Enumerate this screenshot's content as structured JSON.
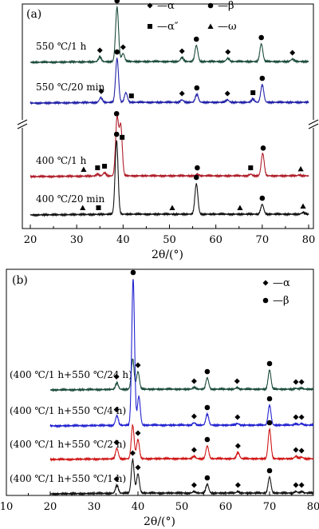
{
  "figure": {
    "legend_symbols": {
      "alpha": "◆",
      "beta": "●",
      "alpha_dp": "■",
      "omega": "▲"
    }
  },
  "chart_data": [
    {
      "type": "line",
      "panel_label": "(a)",
      "xlabel": "2θ/(°)",
      "xlim": [
        20,
        80
      ],
      "x_ticks": [
        20,
        30,
        40,
        50,
        60,
        70,
        80
      ],
      "y_axis_break": true,
      "legend": [
        {
          "marker": "diamond",
          "text": "—α"
        },
        {
          "marker": "circle",
          "text": "—β"
        },
        {
          "marker": "square",
          "text": "—α″"
        },
        {
          "marker": "triangle",
          "text": "—ω"
        }
      ],
      "series": [
        {
          "name": "550 ℃/1 h",
          "color": "#1d4d3c",
          "base": 77,
          "peaks": [
            [
              35,
              6
            ],
            [
              38.7,
              68
            ],
            [
              40,
              10
            ],
            [
              52.7,
              5
            ],
            [
              55.8,
              20
            ],
            [
              62.6,
              4
            ],
            [
              69.8,
              22
            ],
            [
              76.5,
              3
            ]
          ],
          "markers": [
            [
              35,
              "diamond"
            ],
            [
              38.7,
              "circle"
            ],
            [
              40,
              "diamond"
            ],
            [
              52.7,
              "diamond"
            ],
            [
              55.8,
              "circle"
            ],
            [
              62.6,
              "diamond"
            ],
            [
              69.8,
              "circle"
            ],
            [
              76.5,
              "diamond"
            ]
          ]
        },
        {
          "name": "550 ℃/20 min",
          "color": "#2323a8",
          "base": 128,
          "peaks": [
            [
              35.2,
              6
            ],
            [
              38.7,
              55
            ],
            [
              40.6,
              12
            ],
            [
              52.7,
              3
            ],
            [
              55.9,
              10
            ],
            [
              62.5,
              3
            ],
            [
              68,
              4
            ],
            [
              70,
              22
            ]
          ],
          "markers": [
            [
              35.3,
              "diamond"
            ],
            [
              38.7,
              "circle"
            ],
            [
              41.8,
              "square"
            ],
            [
              52.7,
              "diamond"
            ],
            [
              55.9,
              "circle"
            ],
            [
              62.5,
              "diamond"
            ],
            [
              68,
              "square"
            ],
            [
              70,
              "circle"
            ]
          ]
        },
        {
          "name": "400 ℃/1 h",
          "color": "#b01e2a",
          "base": 220,
          "peaks": [
            [
              34.5,
              2
            ],
            [
              36,
              4
            ],
            [
              38.7,
              72
            ],
            [
              39.5,
              62
            ],
            [
              56,
              2
            ],
            [
              67.5,
              2
            ],
            [
              70.1,
              28
            ],
            [
              78,
              1
            ]
          ],
          "markers": [
            [
              31.5,
              "triangle"
            ],
            [
              34.5,
              "square"
            ],
            [
              36,
              "square"
            ],
            [
              38.6,
              "circle"
            ],
            [
              39.8,
              "square"
            ],
            [
              56,
              "circle"
            ],
            [
              67.5,
              "square"
            ],
            [
              70.2,
              "circle"
            ],
            [
              78.3,
              "triangle"
            ]
          ]
        },
        {
          "name": "400 ℃/20 min",
          "color": "#111111",
          "base": 268,
          "peaks": [
            [
              38.6,
              92
            ],
            [
              55.8,
              38
            ],
            [
              70,
              12
            ],
            [
              78.8,
              2
            ]
          ],
          "markers": [
            [
              31.3,
              "triangle"
            ],
            [
              34.7,
              "square"
            ],
            [
              38.6,
              "circle"
            ],
            [
              50.6,
              "triangle"
            ],
            [
              55.8,
              "circle"
            ],
            [
              65.2,
              "triangle"
            ],
            [
              70,
              "circle"
            ],
            [
              78.8,
              "triangle"
            ]
          ]
        }
      ]
    },
    {
      "type": "line",
      "panel_label": "(b)",
      "xlabel": "2θ/(°)",
      "xlim": [
        10,
        80
      ],
      "x_ticks": [
        10,
        20,
        30,
        40,
        50,
        60,
        70,
        80
      ],
      "legend": [
        {
          "marker": "diamond",
          "text": "—α"
        },
        {
          "marker": "circle",
          "text": "—β"
        }
      ],
      "series": [
        {
          "name": "(400 ℃/1 h+550 ℃/24 h)",
          "color": "#1d4d3c",
          "base": 487,
          "peaks": [
            [
              35.2,
              8
            ],
            [
              38.8,
              38
            ],
            [
              40,
              22
            ],
            [
              52.8,
              2
            ],
            [
              55.8,
              14
            ],
            [
              62.6,
              2
            ],
            [
              70,
              24
            ],
            [
              76,
              1
            ],
            [
              77.3,
              1
            ]
          ],
          "markers": [
            [
              35.1,
              "diamond"
            ],
            [
              40,
              "diamond"
            ],
            [
              52.8,
              "diamond"
            ],
            [
              55.8,
              "circle"
            ],
            [
              62.6,
              "diamond"
            ],
            [
              70,
              "circle"
            ],
            [
              76,
              "diamond"
            ],
            [
              77.3,
              "diamond"
            ]
          ]
        },
        {
          "name": "(400 ℃/1 h+550 ℃/4 h)",
          "color": "#2323d0",
          "base": 532,
          "peaks": [
            [
              35.2,
              12
            ],
            [
              38.9,
              183
            ],
            [
              40.2,
              36
            ],
            [
              52.8,
              3
            ],
            [
              55.8,
              14
            ],
            [
              62.7,
              2
            ],
            [
              70,
              25
            ],
            [
              76,
              2
            ],
            [
              77.3,
              2
            ]
          ],
          "markers": [
            [
              35.1,
              "diamond"
            ],
            [
              38.9,
              "circle"
            ],
            [
              52.8,
              "diamond"
            ],
            [
              55.8,
              "circle"
            ],
            [
              62.7,
              "diamond"
            ],
            [
              70,
              "circle"
            ],
            [
              76,
              "diamond"
            ],
            [
              77.3,
              "diamond"
            ]
          ]
        },
        {
          "name": "(400 ℃/1 h+550 ℃/2 h)",
          "color": "#d01818",
          "base": 574,
          "peaks": [
            [
              35.2,
              13
            ],
            [
              38.8,
              42
            ],
            [
              40,
              24
            ],
            [
              52.8,
              3
            ],
            [
              55.8,
              16
            ],
            [
              62.8,
              8
            ],
            [
              70,
              37
            ],
            [
              76,
              3
            ],
            [
              77.3,
              2
            ]
          ],
          "markers": [
            [
              35.1,
              "diamond"
            ],
            [
              40,
              "diamond"
            ],
            [
              52.8,
              "diamond"
            ],
            [
              55.8,
              "circle"
            ],
            [
              62.8,
              "diamond"
            ],
            [
              70,
              "circle"
            ],
            [
              76,
              "diamond"
            ],
            [
              77.3,
              "diamond"
            ]
          ]
        },
        {
          "name": "(400 ℃/1 h+550 ℃/1 h)",
          "color": "#111111",
          "base": 617,
          "peaks": [
            [
              35.2,
              10
            ],
            [
              38.8,
              42
            ],
            [
              40,
              24
            ],
            [
              52.8,
              2
            ],
            [
              55.8,
              11
            ],
            [
              62.8,
              2
            ],
            [
              70,
              20
            ],
            [
              76,
              2
            ],
            [
              77.3,
              2
            ]
          ],
          "markers": [
            [
              35.1,
              "diamond"
            ],
            [
              38.8,
              "diamond"
            ],
            [
              40,
              "diamond"
            ],
            [
              52.8,
              "diamond"
            ],
            [
              55.8,
              "circle"
            ],
            [
              62.8,
              "diamond"
            ],
            [
              70,
              "circle"
            ],
            [
              76,
              "diamond"
            ],
            [
              77.3,
              "diamond"
            ]
          ]
        }
      ]
    }
  ]
}
